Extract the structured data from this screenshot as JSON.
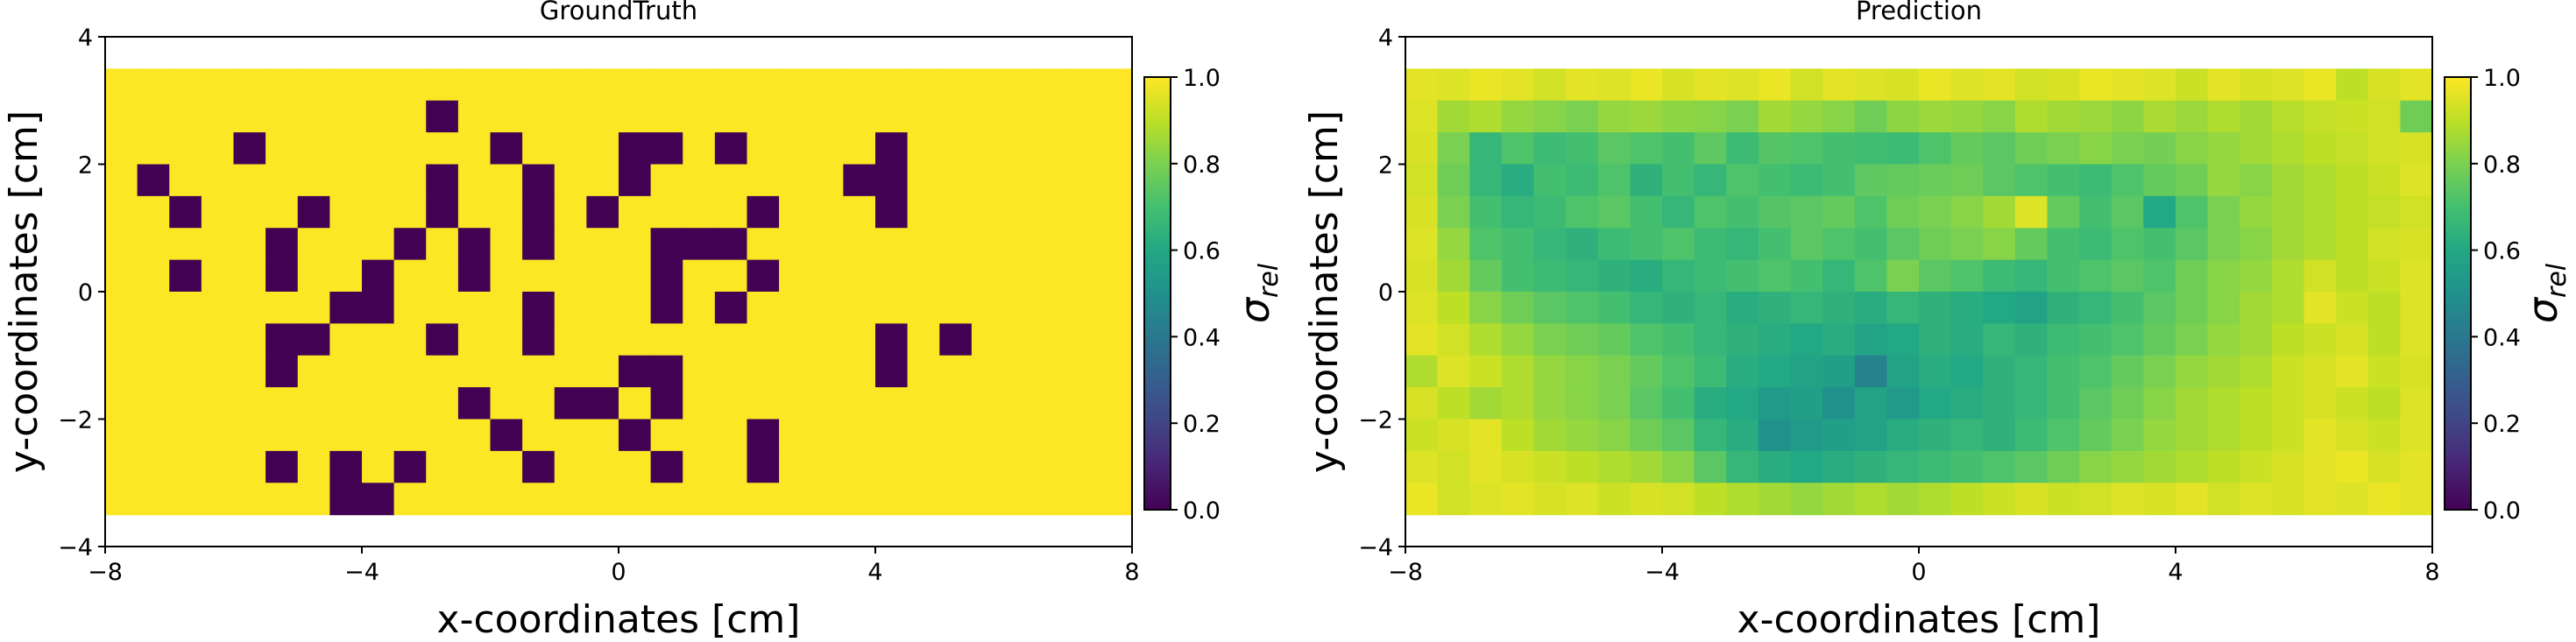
{
  "charts": [
    {
      "type": "heatmap",
      "title": "GroundTruth",
      "xlabel": "x-coordinates [cm]",
      "ylabel": "y-coordinates [cm]",
      "xlim": [
        -8,
        8
      ],
      "ylim": [
        -4,
        4
      ],
      "xticks": [
        "−8",
        "−4",
        "0",
        "4",
        "8"
      ],
      "yticks": [
        "−4",
        "−2",
        "0",
        "2",
        "4"
      ],
      "grid_extent": {
        "x": [
          -8,
          8
        ],
        "y": [
          -3.5,
          3.5
        ]
      },
      "grid_size": [
        32,
        14
      ],
      "colorbar": {
        "label": "σ",
        "sub": "rel",
        "range": [
          0,
          1
        ],
        "ticks": [
          "0.0",
          "0.2",
          "0.4",
          "0.6",
          "0.8",
          "1.0"
        ]
      },
      "grid": [
        [
          1,
          1,
          1,
          1,
          1,
          1,
          1,
          1,
          1,
          1,
          1,
          1,
          1,
          1,
          1,
          1,
          1,
          1,
          1,
          1,
          1,
          1,
          1,
          1,
          1,
          1,
          1,
          1,
          1,
          1,
          1,
          1
        ],
        [
          1,
          1,
          1,
          1,
          1,
          1,
          1,
          1,
          1,
          1,
          0,
          1,
          1,
          1,
          1,
          1,
          1,
          1,
          1,
          1,
          1,
          1,
          1,
          1,
          1,
          1,
          1,
          1,
          1,
          1,
          1,
          1
        ],
        [
          1,
          1,
          1,
          1,
          0,
          1,
          1,
          1,
          1,
          1,
          1,
          1,
          0,
          1,
          1,
          1,
          0,
          0,
          1,
          0,
          1,
          1,
          1,
          1,
          0,
          1,
          1,
          1,
          1,
          1,
          1,
          1
        ],
        [
          1,
          0,
          1,
          1,
          1,
          1,
          1,
          1,
          1,
          1,
          0,
          1,
          1,
          0,
          1,
          1,
          0,
          1,
          1,
          1,
          1,
          1,
          1,
          0,
          0,
          1,
          1,
          1,
          1,
          1,
          1,
          1
        ],
        [
          1,
          1,
          0,
          1,
          1,
          1,
          0,
          1,
          1,
          1,
          0,
          1,
          1,
          0,
          1,
          0,
          1,
          1,
          1,
          1,
          0,
          1,
          1,
          1,
          0,
          1,
          1,
          1,
          1,
          1,
          1,
          1
        ],
        [
          1,
          1,
          1,
          1,
          1,
          0,
          1,
          1,
          1,
          0,
          1,
          0,
          1,
          0,
          1,
          1,
          1,
          0,
          0,
          0,
          1,
          1,
          1,
          1,
          1,
          1,
          1,
          1,
          1,
          1,
          1,
          1
        ],
        [
          1,
          1,
          0,
          1,
          1,
          0,
          1,
          1,
          0,
          1,
          1,
          0,
          1,
          1,
          1,
          1,
          1,
          0,
          1,
          1,
          0,
          1,
          1,
          1,
          1,
          1,
          1,
          1,
          1,
          1,
          1,
          1
        ],
        [
          1,
          1,
          1,
          1,
          1,
          1,
          1,
          0,
          0,
          1,
          1,
          1,
          1,
          0,
          1,
          1,
          1,
          0,
          1,
          0,
          1,
          1,
          1,
          1,
          1,
          1,
          1,
          1,
          1,
          1,
          1,
          1
        ],
        [
          1,
          1,
          1,
          1,
          1,
          0,
          0,
          1,
          1,
          1,
          0,
          1,
          1,
          0,
          1,
          1,
          1,
          1,
          1,
          1,
          1,
          1,
          1,
          1,
          0,
          1,
          0,
          1,
          1,
          1,
          1,
          1
        ],
        [
          1,
          1,
          1,
          1,
          1,
          0,
          1,
          1,
          1,
          1,
          1,
          1,
          1,
          1,
          1,
          1,
          0,
          0,
          1,
          1,
          1,
          1,
          1,
          1,
          0,
          1,
          1,
          1,
          1,
          1,
          1,
          1
        ],
        [
          1,
          1,
          1,
          1,
          1,
          1,
          1,
          1,
          1,
          1,
          1,
          0,
          1,
          1,
          0,
          0,
          1,
          0,
          1,
          1,
          1,
          1,
          1,
          1,
          1,
          1,
          1,
          1,
          1,
          1,
          1,
          1
        ],
        [
          1,
          1,
          1,
          1,
          1,
          1,
          1,
          1,
          1,
          1,
          1,
          1,
          0,
          1,
          1,
          1,
          0,
          1,
          1,
          1,
          0,
          1,
          1,
          1,
          1,
          1,
          1,
          1,
          1,
          1,
          1,
          1
        ],
        [
          1,
          1,
          1,
          1,
          1,
          0,
          1,
          0,
          1,
          0,
          1,
          1,
          1,
          0,
          1,
          1,
          1,
          0,
          1,
          1,
          0,
          1,
          1,
          1,
          1,
          1,
          1,
          1,
          1,
          1,
          1,
          1
        ],
        [
          1,
          1,
          1,
          1,
          1,
          1,
          1,
          0,
          0,
          1,
          1,
          1,
          1,
          1,
          1,
          1,
          1,
          1,
          1,
          1,
          1,
          1,
          1,
          1,
          1,
          1,
          1,
          1,
          1,
          1,
          1,
          1
        ]
      ]
    },
    {
      "type": "heatmap",
      "title": "Prediction",
      "xlabel": "x-coordinates [cm]",
      "ylabel": "y-coordinates [cm]",
      "xlim": [
        -8,
        8
      ],
      "ylim": [
        -4,
        4
      ],
      "xticks": [
        "−8",
        "−4",
        "0",
        "4",
        "8"
      ],
      "yticks": [
        "−4",
        "−2",
        "0",
        "2",
        "4"
      ],
      "grid_extent": {
        "x": [
          -8,
          8
        ],
        "y": [
          -3.5,
          3.5
        ]
      },
      "grid_size": [
        32,
        14
      ],
      "colorbar": {
        "label": "σ",
        "sub": "rel",
        "range": [
          0,
          1
        ],
        "ticks": [
          "0.0",
          "0.2",
          "0.4",
          "0.6",
          "0.8",
          "1.0"
        ]
      },
      "grid": [
        [
          0.96,
          0.95,
          0.97,
          0.96,
          0.93,
          0.96,
          0.95,
          0.97,
          0.94,
          0.96,
          0.95,
          0.97,
          0.93,
          0.96,
          0.95,
          0.94,
          0.97,
          0.95,
          0.96,
          0.93,
          0.94,
          0.97,
          0.96,
          0.95,
          0.92,
          0.96,
          0.94,
          0.95,
          0.97,
          0.9,
          0.94,
          0.96
        ],
        [
          0.95,
          0.86,
          0.88,
          0.84,
          0.82,
          0.8,
          0.84,
          0.85,
          0.83,
          0.82,
          0.8,
          0.86,
          0.84,
          0.82,
          0.78,
          0.83,
          0.85,
          0.84,
          0.82,
          0.88,
          0.86,
          0.85,
          0.83,
          0.87,
          0.85,
          0.88,
          0.86,
          0.89,
          0.91,
          0.92,
          0.93,
          0.78
        ],
        [
          0.94,
          0.8,
          0.66,
          0.72,
          0.68,
          0.7,
          0.74,
          0.72,
          0.7,
          0.75,
          0.68,
          0.73,
          0.72,
          0.7,
          0.69,
          0.68,
          0.72,
          0.76,
          0.74,
          0.78,
          0.8,
          0.82,
          0.8,
          0.79,
          0.82,
          0.84,
          0.86,
          0.88,
          0.9,
          0.91,
          0.93,
          0.94
        ],
        [
          0.93,
          0.78,
          0.66,
          0.62,
          0.7,
          0.68,
          0.72,
          0.64,
          0.7,
          0.66,
          0.72,
          0.7,
          0.68,
          0.7,
          0.75,
          0.76,
          0.77,
          0.78,
          0.74,
          0.72,
          0.7,
          0.68,
          0.72,
          0.76,
          0.78,
          0.84,
          0.82,
          0.86,
          0.88,
          0.9,
          0.92,
          0.95
        ],
        [
          0.94,
          0.8,
          0.7,
          0.66,
          0.68,
          0.72,
          0.74,
          0.7,
          0.66,
          0.72,
          0.7,
          0.73,
          0.74,
          0.76,
          0.72,
          0.78,
          0.8,
          0.82,
          0.86,
          0.95,
          0.76,
          0.7,
          0.74,
          0.6,
          0.72,
          0.8,
          0.84,
          0.86,
          0.88,
          0.9,
          0.91,
          0.93
        ],
        [
          0.95,
          0.84,
          0.72,
          0.7,
          0.66,
          0.64,
          0.68,
          0.7,
          0.72,
          0.68,
          0.66,
          0.7,
          0.74,
          0.72,
          0.7,
          0.74,
          0.78,
          0.8,
          0.82,
          0.76,
          0.7,
          0.68,
          0.72,
          0.7,
          0.74,
          0.8,
          0.82,
          0.86,
          0.88,
          0.9,
          0.93,
          0.94
        ],
        [
          0.94,
          0.86,
          0.76,
          0.7,
          0.68,
          0.66,
          0.64,
          0.62,
          0.66,
          0.68,
          0.7,
          0.72,
          0.7,
          0.66,
          0.72,
          0.8,
          0.74,
          0.72,
          0.68,
          0.66,
          0.7,
          0.72,
          0.74,
          0.72,
          0.78,
          0.82,
          0.84,
          0.88,
          0.93,
          0.9,
          0.92,
          0.95
        ],
        [
          0.95,
          0.9,
          0.82,
          0.78,
          0.74,
          0.72,
          0.7,
          0.66,
          0.64,
          0.66,
          0.62,
          0.64,
          0.66,
          0.64,
          0.62,
          0.66,
          0.64,
          0.62,
          0.6,
          0.58,
          0.64,
          0.66,
          0.7,
          0.74,
          0.78,
          0.82,
          0.86,
          0.88,
          0.96,
          0.92,
          0.9,
          0.95
        ],
        [
          0.96,
          0.93,
          0.88,
          0.84,
          0.8,
          0.78,
          0.76,
          0.72,
          0.7,
          0.66,
          0.64,
          0.62,
          0.6,
          0.62,
          0.58,
          0.6,
          0.64,
          0.62,
          0.66,
          0.64,
          0.68,
          0.7,
          0.72,
          0.76,
          0.8,
          0.84,
          0.86,
          0.9,
          0.92,
          0.94,
          0.9,
          0.95
        ],
        [
          0.88,
          0.95,
          0.92,
          0.88,
          0.84,
          0.82,
          0.8,
          0.76,
          0.72,
          0.68,
          0.62,
          0.6,
          0.58,
          0.56,
          0.44,
          0.58,
          0.62,
          0.6,
          0.64,
          0.66,
          0.7,
          0.72,
          0.76,
          0.8,
          0.84,
          0.86,
          0.88,
          0.92,
          0.94,
          0.96,
          0.92,
          0.94
        ],
        [
          0.94,
          0.9,
          0.86,
          0.88,
          0.84,
          0.82,
          0.8,
          0.74,
          0.7,
          0.62,
          0.6,
          0.54,
          0.56,
          0.5,
          0.58,
          0.54,
          0.6,
          0.62,
          0.64,
          0.66,
          0.7,
          0.74,
          0.78,
          0.82,
          0.86,
          0.88,
          0.9,
          0.92,
          0.94,
          0.92,
          0.9,
          0.95
        ],
        [
          0.92,
          0.94,
          0.96,
          0.9,
          0.86,
          0.84,
          0.82,
          0.78,
          0.74,
          0.66,
          0.62,
          0.5,
          0.54,
          0.56,
          0.58,
          0.62,
          0.64,
          0.66,
          0.64,
          0.68,
          0.72,
          0.76,
          0.8,
          0.84,
          0.86,
          0.88,
          0.9,
          0.92,
          0.96,
          0.94,
          0.92,
          0.95
        ],
        [
          0.95,
          0.93,
          0.96,
          0.94,
          0.92,
          0.9,
          0.88,
          0.86,
          0.82,
          0.74,
          0.66,
          0.62,
          0.6,
          0.62,
          0.64,
          0.66,
          0.68,
          0.7,
          0.72,
          0.74,
          0.78,
          0.82,
          0.84,
          0.86,
          0.88,
          0.9,
          0.92,
          0.94,
          0.96,
          0.97,
          0.94,
          0.96
        ],
        [
          0.97,
          0.93,
          0.95,
          0.96,
          0.94,
          0.95,
          0.92,
          0.94,
          0.93,
          0.9,
          0.88,
          0.86,
          0.84,
          0.86,
          0.88,
          0.86,
          0.88,
          0.9,
          0.92,
          0.94,
          0.92,
          0.93,
          0.95,
          0.94,
          0.96,
          0.93,
          0.95,
          0.94,
          0.96,
          0.95,
          0.97,
          0.96
        ]
      ]
    }
  ]
}
